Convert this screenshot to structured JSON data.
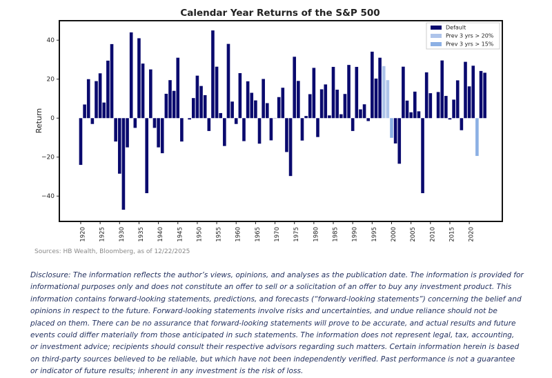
{
  "chart_data": {
    "type": "bar",
    "title": "Calendar Year Returns of the S&P 500",
    "y_label": "Return",
    "x": [
      1920,
      1921,
      1922,
      1923,
      1924,
      1925,
      1926,
      1927,
      1928,
      1929,
      1930,
      1931,
      1932,
      1933,
      1934,
      1935,
      1936,
      1937,
      1938,
      1939,
      1940,
      1941,
      1942,
      1943,
      1944,
      1945,
      1946,
      1947,
      1948,
      1949,
      1950,
      1951,
      1952,
      1953,
      1954,
      1955,
      1956,
      1957,
      1958,
      1959,
      1960,
      1961,
      1962,
      1963,
      1964,
      1965,
      1966,
      1967,
      1968,
      1969,
      1970,
      1971,
      1972,
      1973,
      1974,
      1975,
      1976,
      1977,
      1978,
      1979,
      1980,
      1981,
      1982,
      1983,
      1984,
      1985,
      1986,
      1987,
      1988,
      1989,
      1990,
      1991,
      1992,
      1993,
      1994,
      1995,
      1996,
      1997,
      1998,
      1999,
      2000,
      2001,
      2002,
      2003,
      2004,
      2005,
      2006,
      2007,
      2008,
      2009,
      2010,
      2011,
      2012,
      2013,
      2014,
      2015,
      2016,
      2017,
      2018,
      2019,
      2020,
      2021,
      2022,
      2023,
      2024
    ],
    "series": [
      {
        "name": "Default",
        "color": "#0a0a6e",
        "values": [
          -24,
          7,
          20,
          -3,
          19,
          23,
          8,
          29.5,
          38,
          -12,
          -28.5,
          -47,
          -15,
          44,
          -5,
          41,
          28,
          -38.5,
          25,
          -5,
          -15,
          -18,
          12.5,
          19.5,
          14,
          31,
          -12,
          0,
          -0.7,
          10.3,
          21.8,
          16.5,
          11.8,
          -6.6,
          45,
          26.4,
          2.6,
          -14.3,
          38.1,
          8.5,
          -3,
          23.1,
          -11.8,
          18.9,
          13,
          9.1,
          -13.1,
          20.1,
          7.7,
          -11.4,
          0.1,
          10.8,
          15.6,
          -17.4,
          -29.7,
          31.5,
          19.1,
          -11.5,
          1.1,
          12.3,
          25.8,
          -9.7,
          14.8,
          17.3,
          1.4,
          26.3,
          14.6,
          2,
          12.4,
          27.3,
          -6.6,
          26.3,
          4.5,
          7.1,
          -1.5,
          34.1,
          20.3,
          31,
          null,
          null,
          null,
          -13,
          -23.4,
          26.4,
          9,
          3,
          13.6,
          3.5,
          -38.5,
          23.5,
          12.8,
          0,
          13.4,
          29.6,
          11.4,
          -0.7,
          9.5,
          19.4,
          -6.2,
          28.9,
          16.3,
          26.9,
          null,
          24.2,
          23.3
        ]
      },
      {
        "name": "Prev 3 yrs > 20%",
        "color": "#aec4ea",
        "values": [
          null,
          null,
          null,
          null,
          null,
          null,
          null,
          null,
          null,
          null,
          null,
          null,
          null,
          null,
          null,
          null,
          null,
          null,
          null,
          null,
          null,
          null,
          null,
          null,
          null,
          null,
          null,
          null,
          null,
          null,
          null,
          null,
          null,
          null,
          null,
          null,
          null,
          null,
          null,
          null,
          null,
          null,
          null,
          null,
          null,
          null,
          null,
          null,
          null,
          null,
          null,
          null,
          null,
          null,
          null,
          null,
          null,
          null,
          null,
          null,
          null,
          null,
          null,
          null,
          null,
          null,
          null,
          null,
          null,
          null,
          null,
          null,
          null,
          null,
          null,
          null,
          null,
          null,
          26.7,
          19.5,
          null,
          null,
          null,
          null,
          null,
          null,
          null,
          null,
          null,
          null,
          null,
          null,
          null,
          null,
          null,
          null,
          null,
          null,
          null,
          null,
          null,
          null,
          null,
          null,
          null
        ]
      },
      {
        "name": "Prev 3 yrs > 15%",
        "color": "#8cb0e4",
        "values": [
          null,
          null,
          null,
          null,
          null,
          null,
          null,
          null,
          null,
          null,
          null,
          null,
          null,
          null,
          null,
          null,
          null,
          null,
          null,
          null,
          null,
          null,
          null,
          null,
          null,
          null,
          null,
          null,
          null,
          null,
          null,
          null,
          null,
          null,
          null,
          null,
          null,
          null,
          null,
          null,
          null,
          null,
          null,
          null,
          null,
          null,
          null,
          null,
          null,
          null,
          null,
          null,
          null,
          null,
          null,
          null,
          null,
          null,
          null,
          null,
          null,
          null,
          null,
          null,
          null,
          null,
          null,
          null,
          null,
          null,
          null,
          null,
          null,
          null,
          null,
          null,
          null,
          null,
          null,
          null,
          -10.1,
          null,
          null,
          null,
          null,
          null,
          null,
          null,
          null,
          null,
          null,
          null,
          null,
          null,
          null,
          null,
          null,
          null,
          null,
          null,
          null,
          null,
          -19.4,
          null,
          null
        ]
      }
    ],
    "xlim": [
      1914.5,
      2028.5
    ],
    "xticks": [
      1920,
      1925,
      1930,
      1935,
      1940,
      1945,
      1950,
      1955,
      1960,
      1965,
      1970,
      1975,
      1980,
      1985,
      1990,
      1995,
      2000,
      2005,
      2010,
      2015,
      2020
    ],
    "ylim": [
      -53,
      50
    ],
    "yticks": [
      {
        "value": -40,
        "label": "−40"
      },
      {
        "value": -20,
        "label": "−20"
      },
      0,
      20,
      40
    ],
    "legend": "upper right",
    "grid": false
  },
  "source": "Sources: HB Wealth, Bloomberg, as of 12/22/2025",
  "disclosure": "Disclosure: The information reflects the author’s views, opinions, and analyses as the publication date. The information is provided for informational purposes only and does not constitute an offer to sell or a solicitation of an offer to buy any investment product. This information contains forward-looking statements, predictions, and forecasts (“forward-looking statements”) concerning the belief and opinions in respect to the future. Forward-looking statements involve risks and uncertainties, and undue reliance should not be placed on them. There can be no assurance that forward-looking statements will prove to be accurate, and actual results and future events could differ materially from those anticipated in such statements. The information does not represent legal, tax, accounting, or investment advice; recipients should consult their respective advisors regarding such matters. Certain information herein is based on third-party sources believed to be reliable, but which have not been independently verified. Past performance is not a guarantee or indicator of future results; inherent in any investment is the risk of loss."
}
